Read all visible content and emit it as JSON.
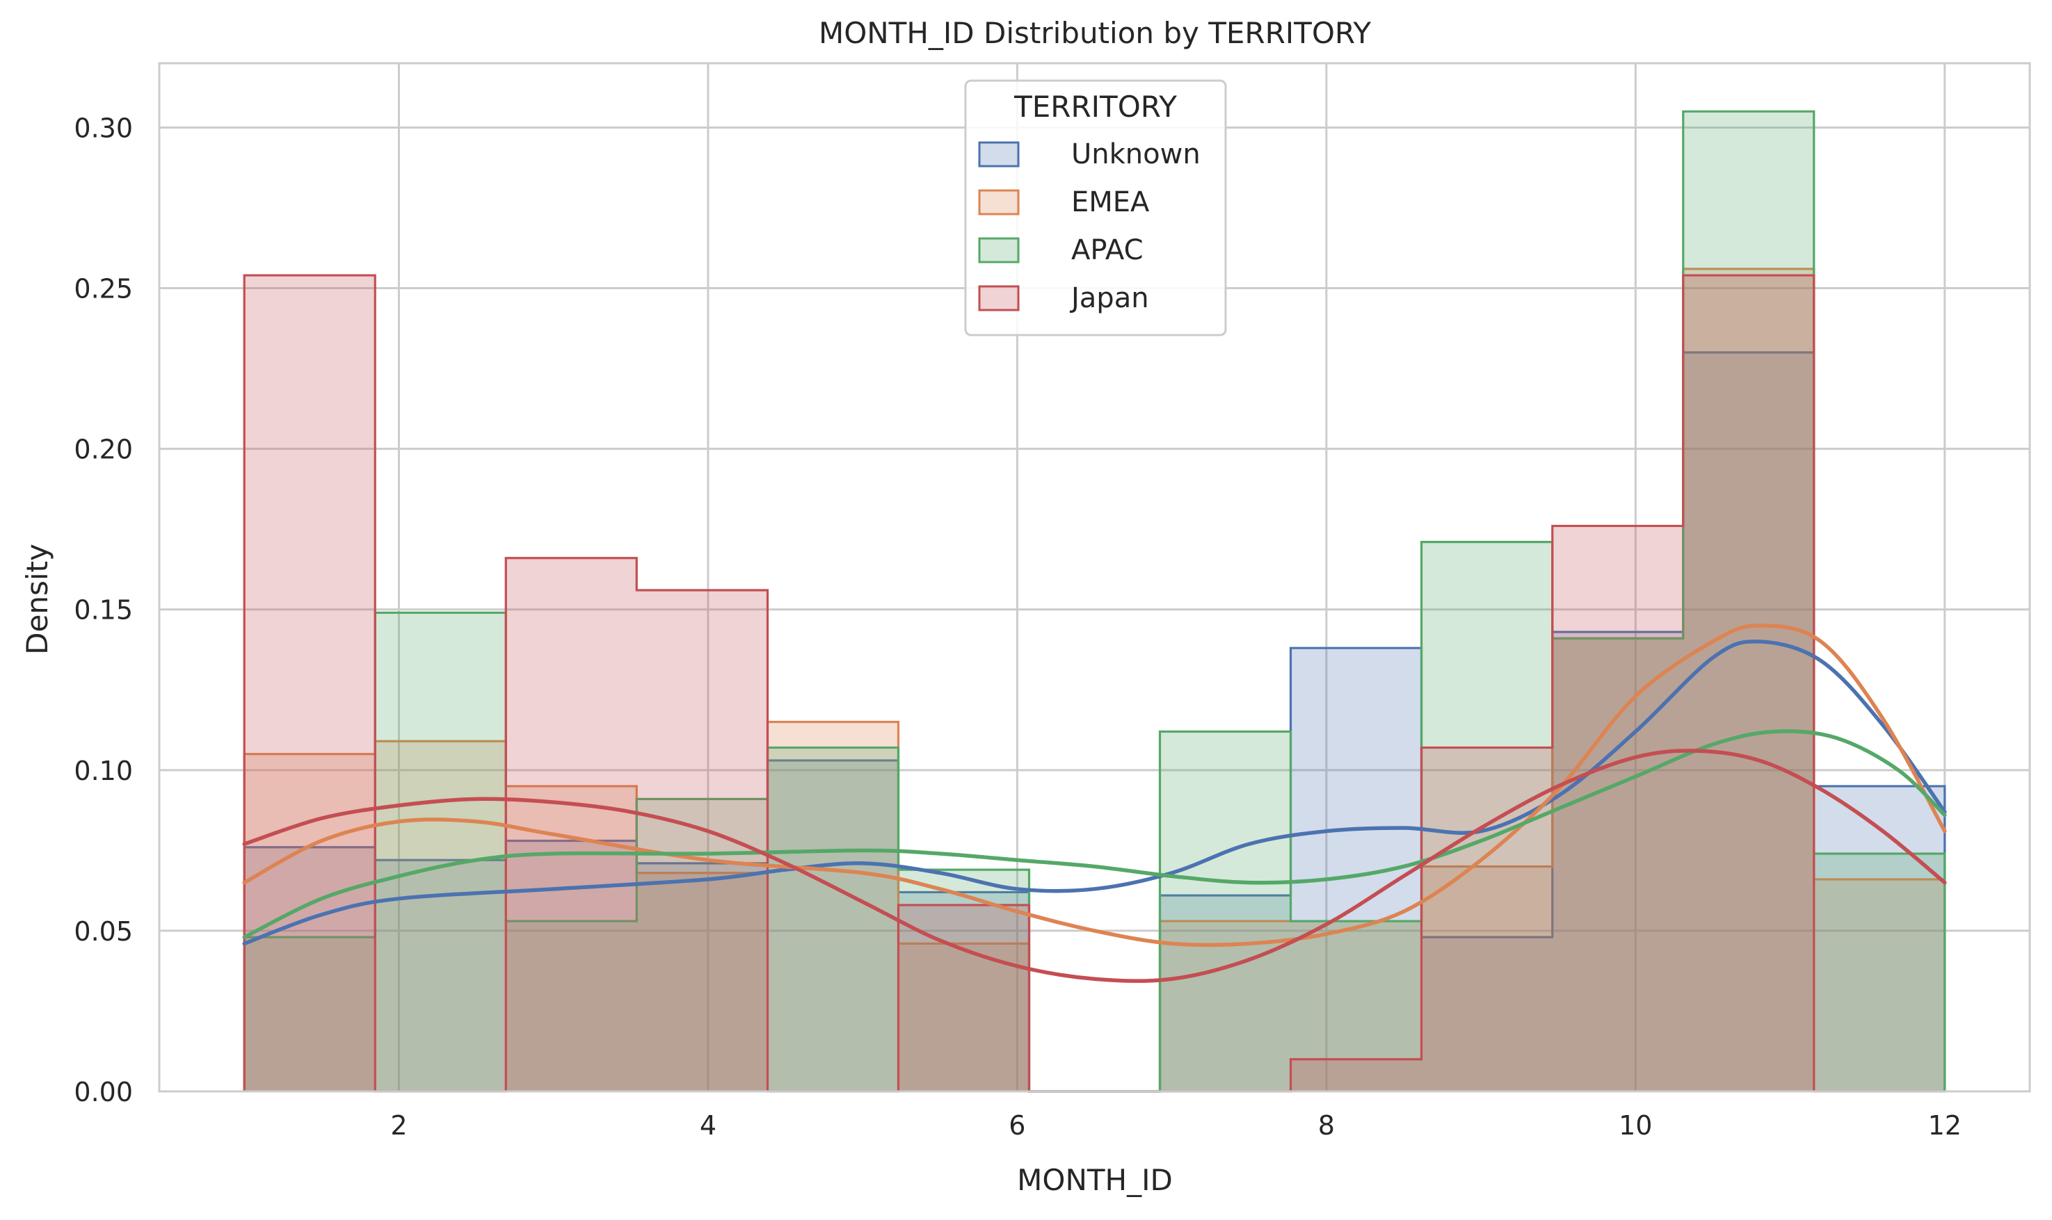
{
  "chart_data": {
    "type": "histogram",
    "title": "MONTH_ID Distribution by TERRITORY",
    "xlabel": "MONTH_ID",
    "ylabel": "Density",
    "xlim": [
      0.45,
      12.55
    ],
    "ylim": [
      0,
      0.32
    ],
    "xticks": [
      2,
      4,
      6,
      8,
      10,
      12
    ],
    "xtick_labels": [
      "2",
      "4",
      "6",
      "8",
      "10",
      "12"
    ],
    "yticks": [
      0.0,
      0.05,
      0.1,
      0.15,
      0.2,
      0.25,
      0.3
    ],
    "ytick_labels": [
      "0.00",
      "0.05",
      "0.10",
      "0.15",
      "0.20",
      "0.25",
      "0.30"
    ],
    "grid": true,
    "legend": {
      "title": "TERRITORY",
      "placement": "upper-center"
    },
    "bin_edges": [
      1.0,
      1.846,
      2.692,
      3.538,
      4.385,
      5.231,
      6.077,
      6.923,
      7.769,
      8.615,
      9.462,
      10.308,
      11.154,
      12.0
    ],
    "series": [
      {
        "name": "Unknown",
        "color": "#4c72b0",
        "values": [
          0.076,
          0.072,
          0.078,
          0.071,
          0.103,
          0.062,
          0.0,
          0.061,
          0.138,
          0.048,
          0.143,
          0.23,
          0.095
        ],
        "kde": [
          [
            1.0,
            0.046
          ],
          [
            1.5,
            0.055
          ],
          [
            2.0,
            0.06
          ],
          [
            3.0,
            0.063
          ],
          [
            4.0,
            0.066
          ],
          [
            4.5,
            0.069
          ],
          [
            5.0,
            0.071
          ],
          [
            5.5,
            0.068
          ],
          [
            6.0,
            0.063
          ],
          [
            6.5,
            0.063
          ],
          [
            7.0,
            0.068
          ],
          [
            7.5,
            0.077
          ],
          [
            8.0,
            0.081
          ],
          [
            8.5,
            0.082
          ],
          [
            9.0,
            0.081
          ],
          [
            9.5,
            0.092
          ],
          [
            10.0,
            0.112
          ],
          [
            10.5,
            0.135
          ],
          [
            10.8,
            0.14
          ],
          [
            11.2,
            0.134
          ],
          [
            11.6,
            0.114
          ],
          [
            12.0,
            0.087
          ]
        ]
      },
      {
        "name": "EMEA",
        "color": "#dd8452",
        "values": [
          0.105,
          0.109,
          0.095,
          0.068,
          0.115,
          0.046,
          0.0,
          0.053,
          0.053,
          0.07,
          0.141,
          0.256,
          0.066
        ],
        "kde": [
          [
            1.0,
            0.065
          ],
          [
            1.5,
            0.078
          ],
          [
            2.0,
            0.084
          ],
          [
            2.5,
            0.084
          ],
          [
            3.0,
            0.08
          ],
          [
            4.0,
            0.072
          ],
          [
            5.0,
            0.068
          ],
          [
            5.5,
            0.063
          ],
          [
            6.0,
            0.056
          ],
          [
            6.5,
            0.05
          ],
          [
            7.0,
            0.046
          ],
          [
            7.5,
            0.046
          ],
          [
            8.0,
            0.049
          ],
          [
            8.5,
            0.056
          ],
          [
            9.0,
            0.072
          ],
          [
            9.5,
            0.094
          ],
          [
            10.0,
            0.123
          ],
          [
            10.5,
            0.14
          ],
          [
            10.8,
            0.145
          ],
          [
            11.2,
            0.14
          ],
          [
            11.6,
            0.116
          ],
          [
            12.0,
            0.081
          ]
        ]
      },
      {
        "name": "APAC",
        "color": "#55a868",
        "values": [
          0.048,
          0.149,
          0.053,
          0.091,
          0.107,
          0.069,
          0.0,
          0.112,
          0.053,
          0.171,
          0.141,
          0.305,
          0.074
        ],
        "kde": [
          [
            1.0,
            0.048
          ],
          [
            1.5,
            0.06
          ],
          [
            2.0,
            0.067
          ],
          [
            2.5,
            0.072
          ],
          [
            3.0,
            0.074
          ],
          [
            4.0,
            0.074
          ],
          [
            5.0,
            0.075
          ],
          [
            5.5,
            0.074
          ],
          [
            6.0,
            0.072
          ],
          [
            6.5,
            0.07
          ],
          [
            7.0,
            0.067
          ],
          [
            7.5,
            0.065
          ],
          [
            8.0,
            0.066
          ],
          [
            8.5,
            0.07
          ],
          [
            9.0,
            0.078
          ],
          [
            9.5,
            0.088
          ],
          [
            10.0,
            0.098
          ],
          [
            10.5,
            0.108
          ],
          [
            10.9,
            0.112
          ],
          [
            11.3,
            0.11
          ],
          [
            11.7,
            0.1
          ],
          [
            12.0,
            0.086
          ]
        ]
      },
      {
        "name": "Japan",
        "color": "#c44e52",
        "values": [
          0.254,
          0.0,
          0.166,
          0.156,
          0.0,
          0.058,
          0.0,
          0.0,
          0.01,
          0.107,
          0.176,
          0.254,
          0.0
        ],
        "kde": [
          [
            1.0,
            0.077
          ],
          [
            1.5,
            0.085
          ],
          [
            2.0,
            0.089
          ],
          [
            2.5,
            0.091
          ],
          [
            3.0,
            0.09
          ],
          [
            3.5,
            0.087
          ],
          [
            4.0,
            0.081
          ],
          [
            4.5,
            0.071
          ],
          [
            5.0,
            0.059
          ],
          [
            5.5,
            0.047
          ],
          [
            6.0,
            0.039
          ],
          [
            6.5,
            0.035
          ],
          [
            7.0,
            0.035
          ],
          [
            7.5,
            0.041
          ],
          [
            8.0,
            0.052
          ],
          [
            8.5,
            0.067
          ],
          [
            9.0,
            0.082
          ],
          [
            9.5,
            0.095
          ],
          [
            10.0,
            0.104
          ],
          [
            10.4,
            0.106
          ],
          [
            10.8,
            0.103
          ],
          [
            11.2,
            0.094
          ],
          [
            11.6,
            0.081
          ],
          [
            12.0,
            0.065
          ]
        ]
      }
    ]
  }
}
